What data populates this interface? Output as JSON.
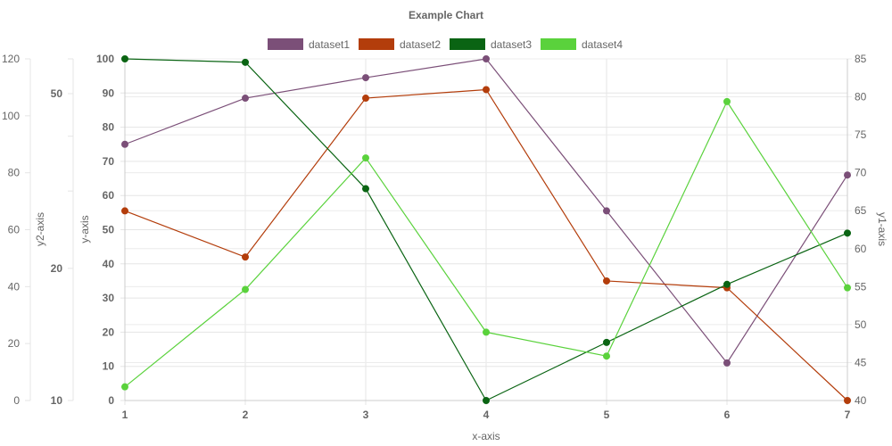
{
  "chart_data": {
    "type": "line",
    "title": "Example Chart",
    "xlabel": "x-axis",
    "categories": [
      "1",
      "2",
      "3",
      "4",
      "5",
      "6",
      "7"
    ],
    "axes": {
      "y": {
        "title": "y-axis",
        "min": 0,
        "max": 100,
        "ticks": [
          0,
          10,
          20,
          30,
          40,
          50,
          60,
          70,
          80,
          90,
          100
        ]
      },
      "y1": {
        "title": "y1-axis",
        "min": 40,
        "max": 85,
        "ticks": [
          40,
          45,
          50,
          55,
          60,
          65,
          70,
          75,
          80,
          85
        ]
      },
      "y2": {
        "title": "y2-axis",
        "min": 0,
        "max": 120,
        "ticks": [
          0,
          20,
          40,
          60,
          80,
          100,
          120
        ]
      },
      "y3": {
        "min": 10,
        "max": 60,
        "log": true,
        "ticks": [
          10,
          20,
          50
        ]
      }
    },
    "grid": true,
    "legend": "top-center",
    "series": [
      {
        "name": "dataset1",
        "color": "#7b4f78",
        "values": [
          75,
          88.5,
          94.5,
          100,
          55.5,
          11,
          66
        ]
      },
      {
        "name": "dataset2",
        "color": "#b33d0b",
        "values": [
          55.5,
          42,
          88.5,
          91,
          35,
          33,
          0
        ]
      },
      {
        "name": "dataset3",
        "color": "#0a6413",
        "values": [
          100,
          99,
          62,
          0,
          17,
          34,
          49
        ]
      },
      {
        "name": "dataset4",
        "color": "#5ad23c",
        "values": [
          4,
          32.5,
          71,
          20,
          13,
          87.5,
          33
        ]
      }
    ]
  }
}
